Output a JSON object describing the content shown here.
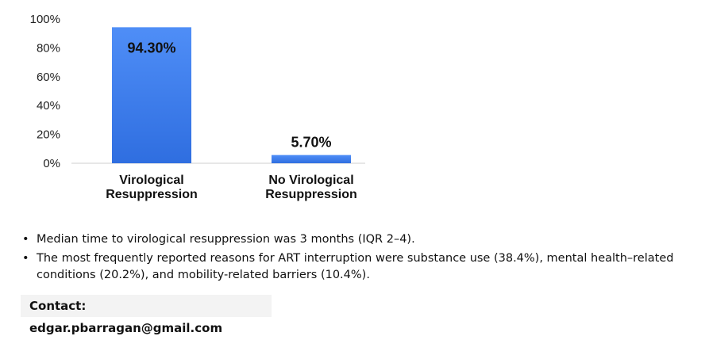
{
  "chart_data": {
    "type": "bar",
    "categories": [
      [
        "Virological",
        "Resuppression"
      ],
      [
        "No Virological",
        "Resuppression"
      ]
    ],
    "values": [
      94.3,
      5.7
    ],
    "data_labels": [
      "94.30%",
      "5.70%"
    ],
    "yticks": [
      "0%",
      "20%",
      "40%",
      "60%",
      "80%",
      "100%"
    ],
    "ylim": [
      0,
      100
    ],
    "grid": false,
    "bar_color_top": "#4f8ef7",
    "bar_color_bottom": "#2f6ee0"
  },
  "notes": [
    "Median time to virological resuppression was 3 months (IQR 2–4).",
    "The most frequently reported reasons for ART interruption were substance use (38.4%), mental health–related conditions (20.2%), and mobility-related barriers (10.4%)."
  ],
  "bullet_glyph": "•",
  "contact": "Contact: edgar.pbarragan@gmail.com"
}
